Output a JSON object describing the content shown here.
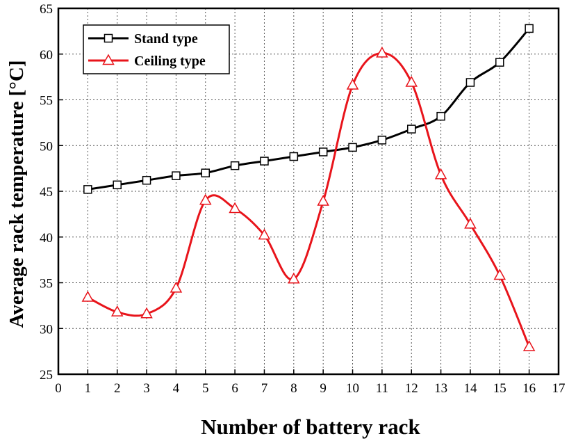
{
  "chart_data": {
    "type": "line",
    "xlabel": "Number of battery rack",
    "ylabel": "Average rack temperature [°C]",
    "xlim": [
      0,
      17
    ],
    "ylim": [
      25,
      65
    ],
    "xticks": [
      0,
      1,
      2,
      3,
      4,
      5,
      6,
      7,
      8,
      9,
      10,
      11,
      12,
      13,
      14,
      15,
      16,
      17
    ],
    "yticks": [
      25,
      30,
      35,
      40,
      45,
      50,
      55,
      60,
      65
    ],
    "grid": true,
    "legend": "top-left",
    "x": [
      1,
      2,
      3,
      4,
      5,
      6,
      7,
      8,
      9,
      10,
      11,
      12,
      13,
      14,
      15,
      16
    ],
    "series": [
      {
        "name": "Stand type",
        "color": "#000000",
        "marker": "square",
        "values": [
          45.2,
          45.7,
          46.2,
          46.7,
          47.0,
          47.8,
          48.3,
          48.8,
          49.3,
          49.8,
          50.6,
          51.8,
          53.2,
          56.9,
          59.1,
          62.8
        ]
      },
      {
        "name": "Ceiling type",
        "color": "#e8141b",
        "marker": "triangle",
        "values": [
          33.4,
          31.8,
          31.6,
          34.4,
          44.0,
          43.1,
          40.2,
          35.4,
          43.9,
          56.6,
          60.1,
          56.9,
          46.8,
          41.4,
          35.8,
          28.0
        ]
      }
    ]
  }
}
